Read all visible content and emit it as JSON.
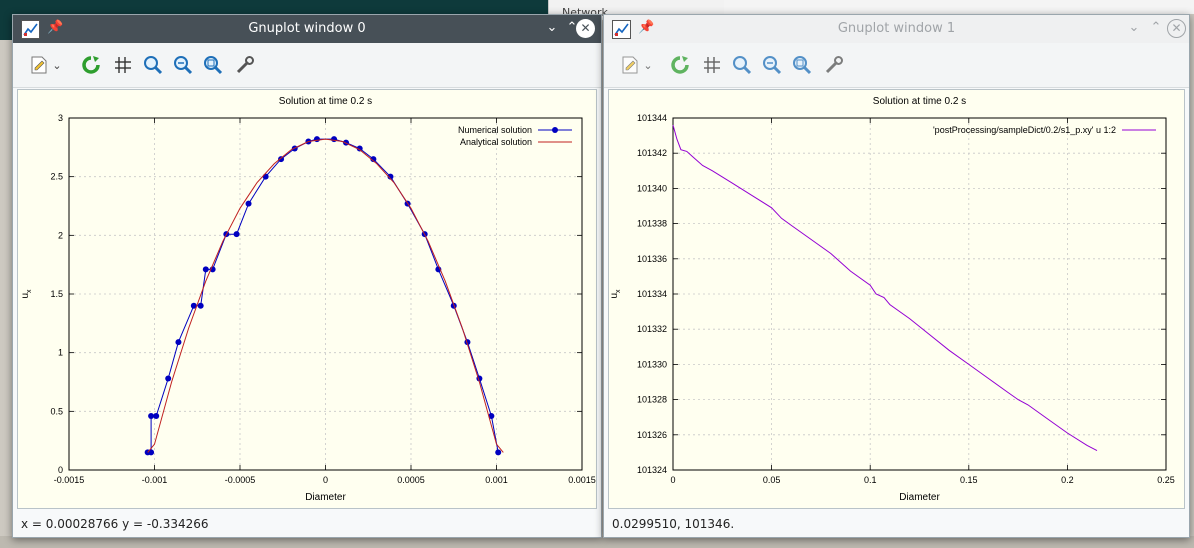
{
  "background": {
    "network_label": "Network",
    "side_label": "Se",
    "terminal_lines": [
      "on",
      "p",
      "M",
      "lo",
      "*"
    ]
  },
  "window0": {
    "title": "Gnuplot window 0",
    "status": "x = 0.00028766 y = -0.334266",
    "controls": {
      "minimize": "⌄",
      "maximize": "⌃",
      "close": "✕"
    }
  },
  "window1": {
    "title": "Gnuplot window 1",
    "status": "0.0299510,  101346.",
    "controls": {
      "minimize": "⌄",
      "maximize": "⌃",
      "close": "✕"
    }
  },
  "toolbar": {
    "icons": [
      "export-icon",
      "dropdown-icon",
      "replot-icon",
      "grid-icon",
      "zoom-previous-icon",
      "zoom-next-icon",
      "autoscale-icon",
      "settings-icon"
    ]
  },
  "chart_data": [
    {
      "type": "line",
      "title": "Solution at time 0.2 s",
      "xlabel": "Diameter",
      "ylabel": "u",
      "ylabel_subscript": "x",
      "xlim": [
        -0.0015,
        0.0015
      ],
      "ylim": [
        0,
        3
      ],
      "grid": true,
      "legend_position": "top-right",
      "xticks": [
        "-0.0015",
        "-0.001",
        "-0.0005",
        "0",
        "0.0005",
        "0.001",
        "0.0015"
      ],
      "xtick_values": [
        -0.0015,
        -0.001,
        -0.0005,
        0,
        0.0005,
        0.001,
        0.0015
      ],
      "yticks": [
        "0",
        "0.5",
        "1",
        "1.5",
        "2",
        "2.5",
        "3"
      ],
      "ytick_values": [
        0,
        0.5,
        1,
        1.5,
        2,
        2.5,
        3
      ],
      "series": [
        {
          "name": "Numerical solution",
          "color": "#0000c0",
          "markers": true,
          "x": [
            -0.00104,
            -0.00102,
            -0.00102,
            -0.00099,
            -0.00092,
            -0.00086,
            -0.00077,
            -0.00073,
            -0.0007,
            -0.00066,
            -0.00058,
            -0.00052,
            -0.00045,
            -0.00035,
            -0.00026,
            -0.00018,
            -0.0001,
            -5e-05,
            5e-05,
            0.00012,
            0.0002,
            0.00028,
            0.00038,
            0.00048,
            0.00058,
            0.00066,
            0.00075,
            0.00083,
            0.0009,
            0.00097,
            0.00101
          ],
          "y": [
            0.15,
            0.15,
            0.46,
            0.46,
            0.78,
            1.09,
            1.4,
            1.4,
            1.71,
            1.71,
            2.01,
            2.01,
            2.27,
            2.5,
            2.65,
            2.74,
            2.8,
            2.82,
            2.82,
            2.79,
            2.74,
            2.65,
            2.5,
            2.27,
            2.01,
            1.71,
            1.4,
            1.09,
            0.78,
            0.46,
            0.15
          ]
        },
        {
          "name": "Analytical solution",
          "color": "#c02020",
          "markers": false,
          "x": [
            -0.00104,
            -0.001,
            -0.0009,
            -0.0008,
            -0.0007,
            -0.0006,
            -0.0005,
            -0.0004,
            -0.0003,
            -0.0002,
            -0.0001,
            0,
            0.0001,
            0.0002,
            0.0003,
            0.0004,
            0.0005,
            0.0006,
            0.0007,
            0.0008,
            0.0009,
            0.001,
            0.00104
          ],
          "y": [
            0.15,
            0.22,
            0.75,
            1.21,
            1.61,
            1.95,
            2.23,
            2.45,
            2.61,
            2.73,
            2.8,
            2.82,
            2.8,
            2.73,
            2.61,
            2.45,
            2.23,
            1.95,
            1.61,
            1.21,
            0.75,
            0.22,
            0.15
          ]
        }
      ]
    },
    {
      "type": "line",
      "title": "Solution at time 0.2 s",
      "xlabel": "Diameter",
      "ylabel": "u",
      "ylabel_subscript": "x",
      "xlim": [
        0,
        0.25
      ],
      "ylim": [
        101324,
        101344
      ],
      "grid": true,
      "legend_position": "top-right",
      "xticks": [
        "0",
        "0.05",
        "0.1",
        "0.15",
        "0.2",
        "0.25"
      ],
      "xtick_values": [
        0,
        0.05,
        0.1,
        0.15,
        0.2,
        0.25
      ],
      "yticks": [
        "101324",
        "101326",
        "101328",
        "101330",
        "101332",
        "101334",
        "101336",
        "101338",
        "101340",
        "101342",
        "101344"
      ],
      "ytick_values": [
        101324,
        101326,
        101328,
        101330,
        101332,
        101334,
        101336,
        101338,
        101340,
        101342,
        101344
      ],
      "series": [
        {
          "name": "'postProcessing/sampleDict/0.2/s1_p.xy' u 1:2",
          "color": "#9400d3",
          "markers": false,
          "x": [
            0.0,
            0.002,
            0.004,
            0.007,
            0.01,
            0.015,
            0.02,
            0.03,
            0.04,
            0.05,
            0.055,
            0.06,
            0.07,
            0.08,
            0.09,
            0.1,
            0.103,
            0.107,
            0.11,
            0.12,
            0.13,
            0.14,
            0.15,
            0.16,
            0.17,
            0.175,
            0.18,
            0.19,
            0.2,
            0.21,
            0.215
          ],
          "y": [
            101343.6,
            101342.8,
            101342.2,
            101342.1,
            101341.8,
            101341.3,
            101341.0,
            101340.3,
            101339.6,
            101338.9,
            101338.3,
            101337.9,
            101337.1,
            101336.3,
            101335.3,
            101334.5,
            101334.0,
            101333.8,
            101333.4,
            101332.6,
            101331.7,
            101330.8,
            101330.0,
            101329.2,
            101328.4,
            101328.0,
            101327.7,
            101326.9,
            101326.1,
            101325.4,
            101325.1
          ]
        }
      ]
    }
  ]
}
